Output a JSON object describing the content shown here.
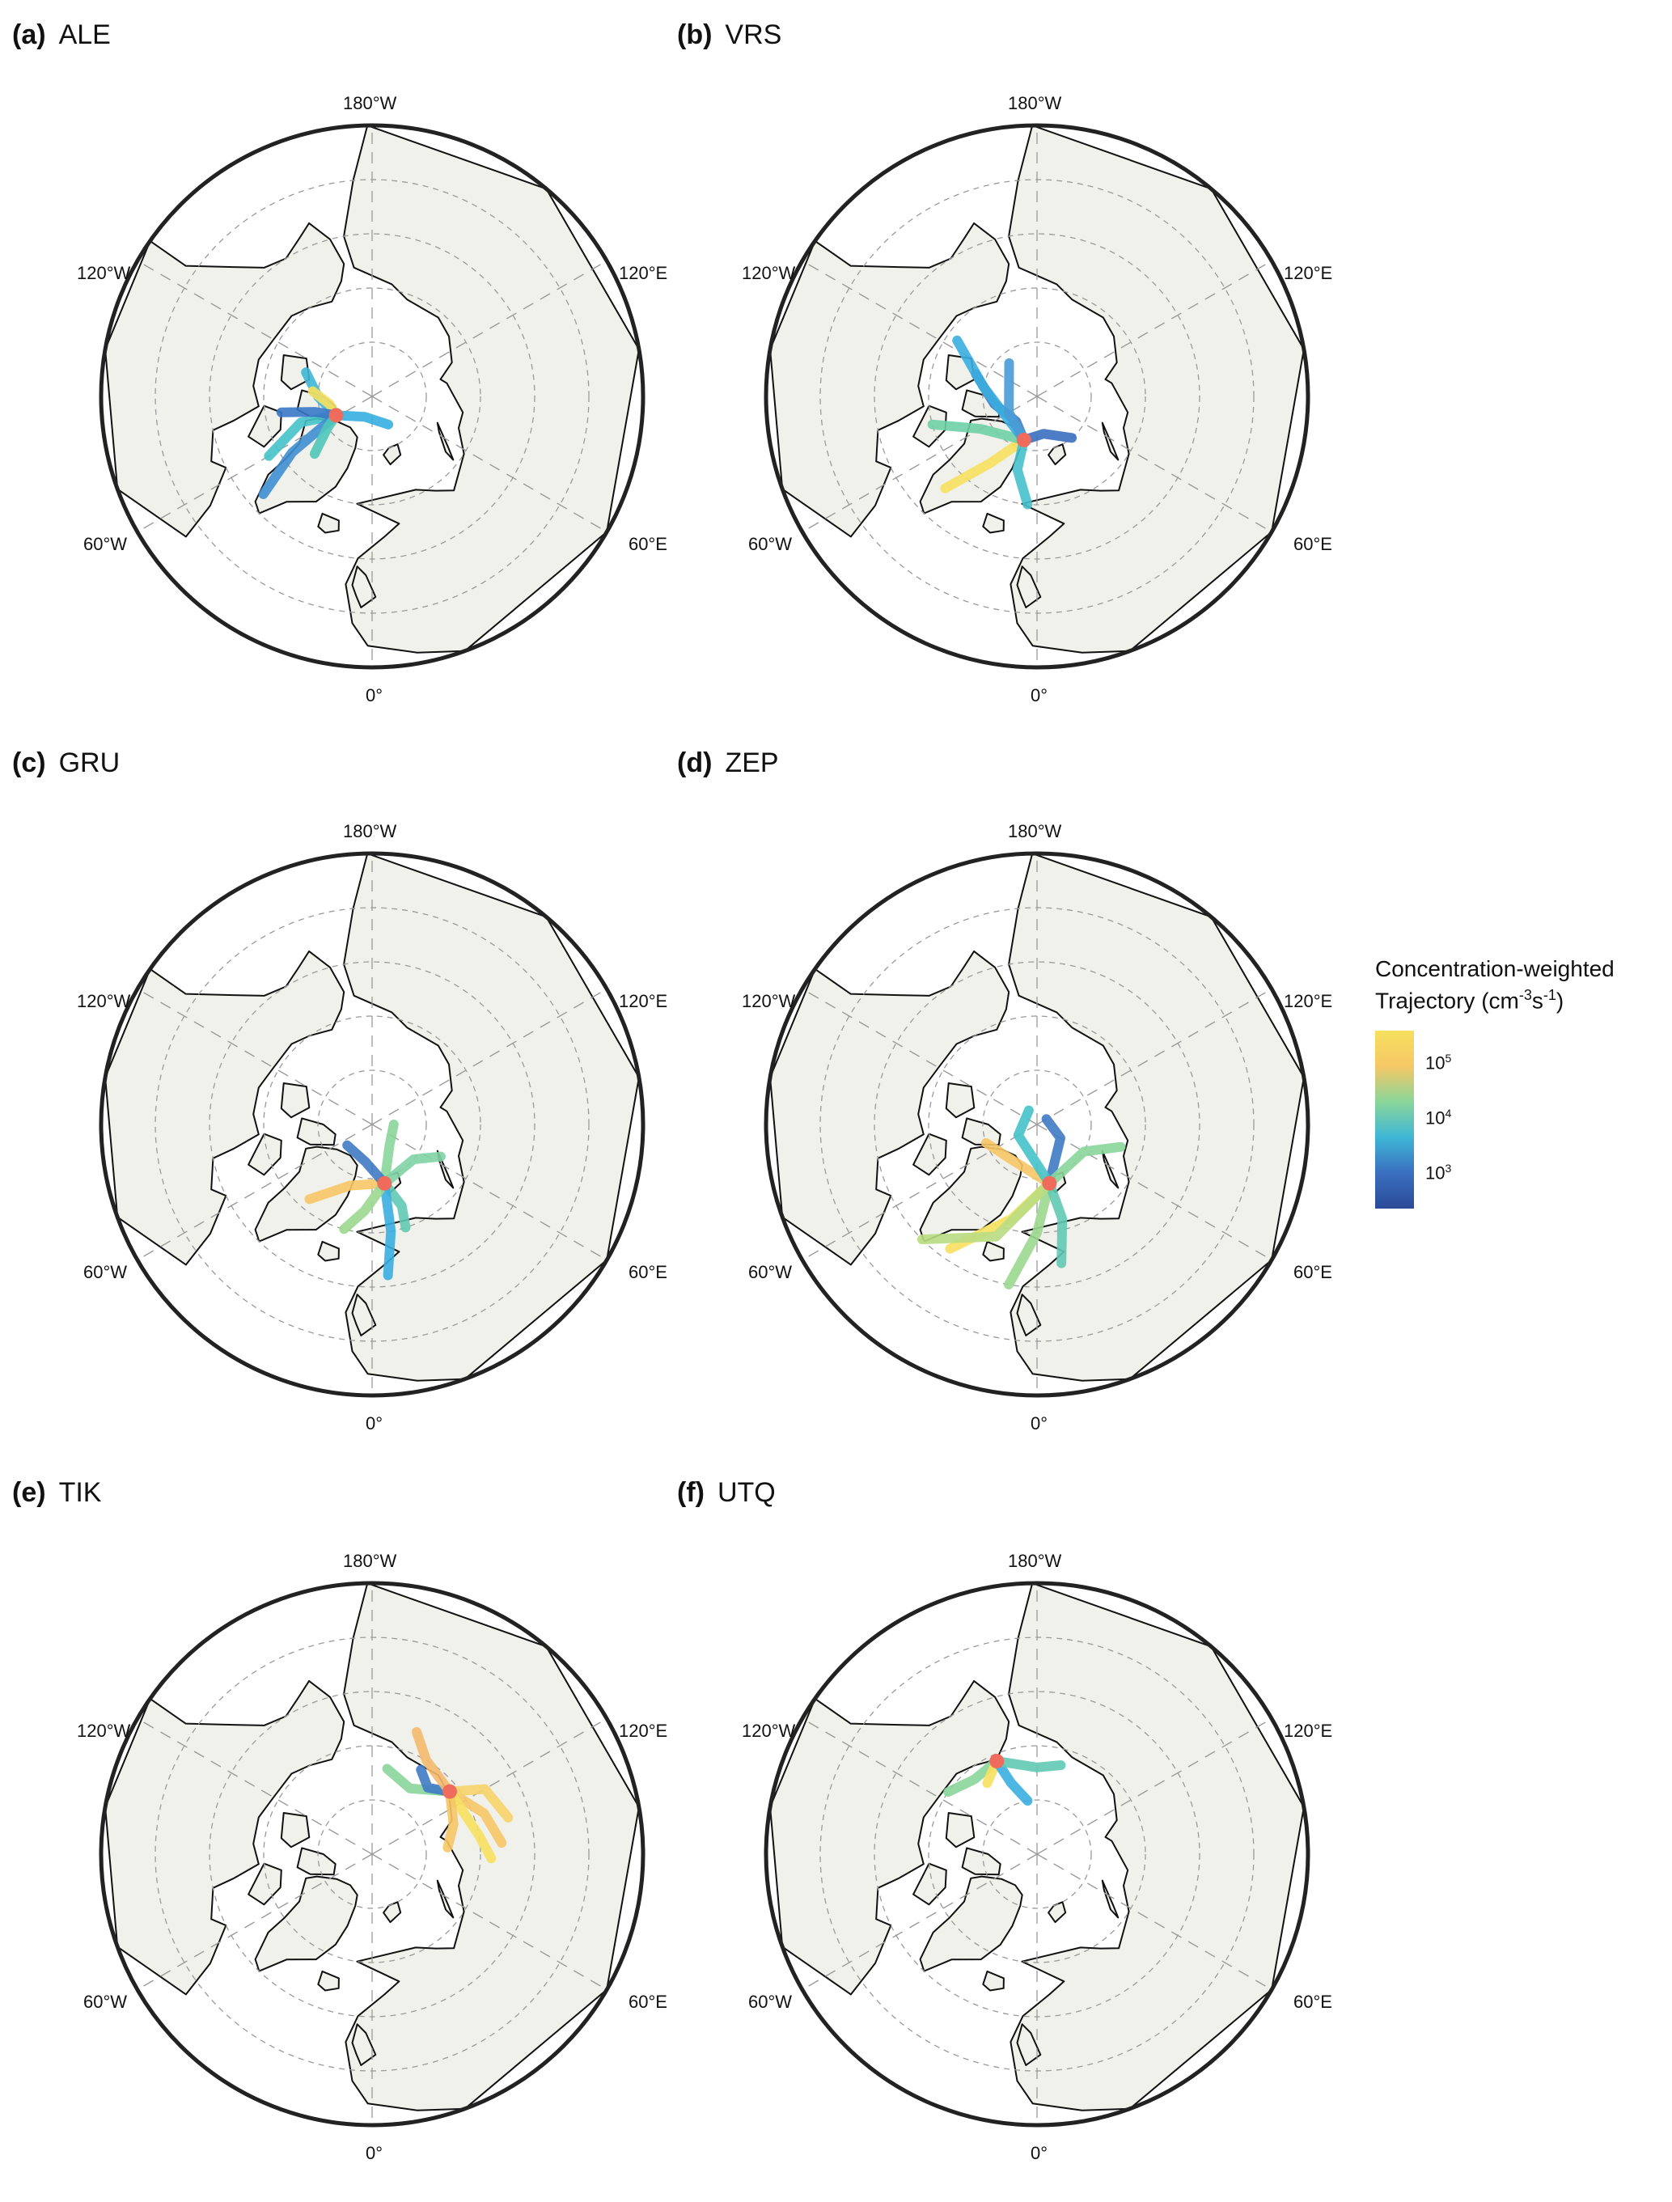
{
  "panels": [
    {
      "letter": "(a)",
      "station": "ALE",
      "site": {
        "lat": 82.5,
        "lon": -62.3
      },
      "trajectories": [
        {
          "c": "#3fb6d6",
          "pts": [
            [
              82.5,
              -62.3
            ],
            [
              80,
              -90
            ],
            [
              77,
              -110
            ]
          ]
        },
        {
          "c": "#f6e05e",
          "pts": [
            [
              82.5,
              -62.3
            ],
            [
              82,
              -80
            ],
            [
              79,
              -95
            ]
          ]
        },
        {
          "c": "#45c3c9",
          "pts": [
            [
              82.5,
              -62.3
            ],
            [
              76,
              -70
            ],
            [
              68,
              -60
            ]
          ]
        },
        {
          "c": "#3f8fd2",
          "pts": [
            [
              82.5,
              -62.3
            ],
            [
              72,
              -55
            ],
            [
              63,
              -48
            ]
          ]
        },
        {
          "c": "#35aee0",
          "pts": [
            [
              82.5,
              -62.3
            ],
            [
              86,
              -20
            ],
            [
              84,
              30
            ]
          ]
        },
        {
          "c": "#3a78c8",
          "pts": [
            [
              82.5,
              -62.3
            ],
            [
              79,
              -75
            ],
            [
              73,
              -80
            ]
          ]
        },
        {
          "c": "#4fc7b9",
          "pts": [
            [
              82.5,
              -62.3
            ],
            [
              80,
              -55
            ],
            [
              75,
              -45
            ]
          ]
        }
      ]
    },
    {
      "letter": "(b)",
      "station": "VRS",
      "site": {
        "lat": 81.6,
        "lon": -16.7
      },
      "trajectories": [
        {
          "c": "#3f7ac4",
          "pts": [
            [
              81.6,
              -16.7
            ],
            [
              84,
              -40
            ],
            [
              82,
              -80
            ],
            [
              78,
              -110
            ]
          ]
        },
        {
          "c": "#3a6fbf",
          "pts": [
            [
              81.6,
              -16.7
            ],
            [
              83,
              10
            ],
            [
              80,
              40
            ]
          ]
        },
        {
          "c": "#f6e05e",
          "pts": [
            [
              81.6,
              -16.7
            ],
            [
              75,
              -35
            ],
            [
              66,
              -45
            ]
          ]
        },
        {
          "c": "#46c1cc",
          "pts": [
            [
              81.6,
              -16.7
            ],
            [
              76,
              -15
            ],
            [
              70,
              -5
            ]
          ]
        },
        {
          "c": "#6fd0a6",
          "pts": [
            [
              81.6,
              -16.7
            ],
            [
              78,
              -60
            ],
            [
              70,
              -75
            ]
          ]
        },
        {
          "c": "#3baee0",
          "pts": [
            [
              81.6,
              -16.7
            ],
            [
              80,
              -100
            ],
            [
              72,
              -125
            ]
          ]
        },
        {
          "c": "#4a9bd6",
          "pts": [
            [
              81.6,
              -16.7
            ],
            [
              84,
              -60
            ],
            [
              82,
              -140
            ]
          ]
        }
      ]
    },
    {
      "letter": "(c)",
      "station": "GRU",
      "site": {
        "lat": 78.9,
        "lon": 11.9
      },
      "trajectories": [
        {
          "c": "#8ad69a",
          "pts": [
            [
              78.9,
              11.9
            ],
            [
              85,
              40
            ],
            [
              86,
              90
            ]
          ]
        },
        {
          "c": "#62c9b2",
          "pts": [
            [
              78.9,
              11.9
            ],
            [
              74,
              20
            ],
            [
              70,
              18
            ]
          ]
        },
        {
          "c": "#3baee0",
          "pts": [
            [
              78.9,
              11.9
            ],
            [
              70,
              10
            ],
            [
              62,
              6
            ]
          ]
        },
        {
          "c": "#f6c766",
          "pts": [
            [
              78.9,
              11.9
            ],
            [
              78,
              -20
            ],
            [
              72,
              -40
            ]
          ]
        },
        {
          "c": "#7fd3a4",
          "pts": [
            [
              78.9,
              11.9
            ],
            [
              80,
              50
            ],
            [
              76,
              65
            ]
          ]
        },
        {
          "c": "#3f7ac4",
          "pts": [
            [
              78.9,
              11.9
            ],
            [
              83,
              -10
            ],
            [
              84,
              -50
            ]
          ]
        },
        {
          "c": "#9bd88f",
          "pts": [
            [
              78.9,
              11.9
            ],
            [
              74,
              -5
            ],
            [
              70,
              -15
            ]
          ]
        }
      ]
    },
    {
      "letter": "(d)",
      "station": "ZEP",
      "site": {
        "lat": 78.9,
        "lon": 11.9
      },
      "trajectories": [
        {
          "c": "#f6e05e",
          "pts": [
            [
              78.9,
              11.9
            ],
            [
              72,
              -15
            ],
            [
              62,
              -35
            ]
          ]
        },
        {
          "c": "#9bd88f",
          "pts": [
            [
              78.9,
              11.9
            ],
            [
              70,
              0
            ],
            [
              60,
              -10
            ]
          ]
        },
        {
          "c": "#62c9b2",
          "pts": [
            [
              78.9,
              11.9
            ],
            [
              72,
              15
            ],
            [
              64,
              10
            ]
          ]
        },
        {
          "c": "#3f7ac4",
          "pts": [
            [
              78.9,
              11.9
            ],
            [
              85,
              60
            ],
            [
              88,
              120
            ]
          ]
        },
        {
          "c": "#8ad69a",
          "pts": [
            [
              78.9,
              11.9
            ],
            [
              80,
              60
            ],
            [
              74,
              75
            ]
          ]
        },
        {
          "c": "#f6c766",
          "pts": [
            [
              78.9,
              11.9
            ],
            [
              82,
              -30
            ],
            [
              80,
              -70
            ]
          ]
        },
        {
          "c": "#45c3c9",
          "pts": [
            [
              78.9,
              11.9
            ],
            [
              86,
              -60
            ],
            [
              87,
              -150
            ]
          ]
        },
        {
          "c": "#b9dc82",
          "pts": [
            [
              78.9,
              11.9
            ],
            [
              68,
              -20
            ],
            [
              60,
              -45
            ]
          ]
        }
      ]
    },
    {
      "letter": "(e)",
      "station": "TIK",
      "site": {
        "lat": 71.6,
        "lon": 128.9
      },
      "trajectories": [
        {
          "c": "#f6c766",
          "pts": [
            [
              71.6,
              128.9
            ],
            [
              68,
              110
            ],
            [
              66,
              95
            ]
          ]
        },
        {
          "c": "#f6d36a",
          "pts": [
            [
              71.6,
              128.9
            ],
            [
              66,
              120
            ],
            [
              64,
              105
            ]
          ]
        },
        {
          "c": "#f6e05e",
          "pts": [
            [
              71.6,
              128.9
            ],
            [
              70,
              100
            ],
            [
              68,
              88
            ]
          ]
        },
        {
          "c": "#8ad69a",
          "pts": [
            [
              71.6,
              128.9
            ],
            [
              76,
              150
            ],
            [
              74,
              170
            ]
          ]
        },
        {
          "c": "#f6c766",
          "pts": [
            [
              71.6,
              128.9
            ],
            [
              74,
              110
            ],
            [
              76,
              95
            ]
          ]
        },
        {
          "c": "#3f7ac4",
          "pts": [
            [
              71.6,
              128.9
            ],
            [
              74,
              140
            ],
            [
              72,
              150
            ]
          ]
        },
        {
          "c": "#f4b96b",
          "pts": [
            [
              71.6,
              128.9
            ],
            [
              70,
              150
            ],
            [
              66,
              160
            ]
          ]
        }
      ]
    },
    {
      "letter": "(f)",
      "station": "UTQ",
      "site": {
        "lat": 71.3,
        "lon": -156.6
      },
      "trajectories": [
        {
          "c": "#8ad69a",
          "pts": [
            [
              71.3,
              -156.6
            ],
            [
              72,
              -140
            ],
            [
              70,
              -125
            ]
          ]
        },
        {
          "c": "#f6e05e",
          "pts": [
            [
              71.3,
              -156.6
            ],
            [
              73,
              -150
            ],
            [
              74,
              -145
            ]
          ]
        },
        {
          "c": "#3baee0",
          "pts": [
            [
              71.3,
              -156.6
            ],
            [
              76,
              -160
            ],
            [
              80,
              -170
            ]
          ]
        },
        {
          "c": "#62c9b2",
          "pts": [
            [
              71.3,
              -156.6
            ],
            [
              74,
              -180
            ],
            [
              73,
              165
            ]
          ]
        }
      ]
    }
  ],
  "lon_labels": {
    "top": "180°W",
    "upper_left": "120°W",
    "upper_right": "120°E",
    "lower_left": "60°W",
    "lower_right": "60°E",
    "bottom": "0°"
  },
  "legend": {
    "title_line1": "Concentration-weighted",
    "title_line2_prefix": "Trajectory (cm",
    "title_exp1": "-3",
    "title_mid": "s",
    "title_exp2": "-1",
    "title_suffix": ")",
    "ticks": [
      {
        "base": "10",
        "exp": "5",
        "value": 100000
      },
      {
        "base": "10",
        "exp": "4",
        "value": 10000
      },
      {
        "base": "10",
        "exp": "3",
        "value": 1000
      }
    ],
    "scale": "log",
    "colors": [
      "#f6e05e",
      "#f6c766",
      "#8ad69a",
      "#3fb6d6",
      "#3a6fbf",
      "#2a4a97"
    ]
  },
  "colors": {
    "land": "#f1f1eb",
    "ocean": "#ffffff",
    "coast": "#111111",
    "grid": "#9a9a9a",
    "site_marker": "#ef6b5b",
    "border": "#222222"
  }
}
